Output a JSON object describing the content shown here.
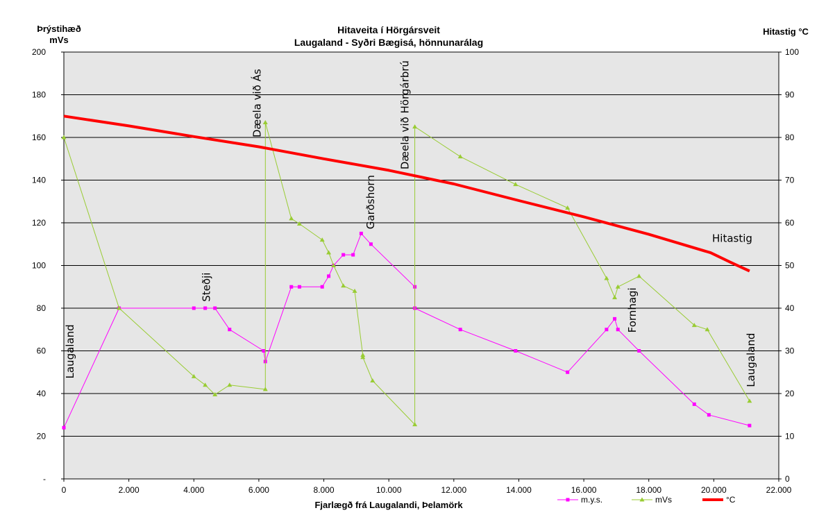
{
  "chart_data": {
    "type": "line",
    "title": "Hitaveita  í  Hörgársveit",
    "subtitle": "Laugaland - Syðri Bægisá, hönnunarálag",
    "xlabel": "Fjarlægð frá Laugalandi, Þelamörk",
    "ylabel_left_line1": "Þrýstihæð",
    "ylabel_left_line2": "mVs",
    "ylabel_right": "Hitastig °C",
    "xlim": [
      0,
      22000
    ],
    "ylim_left": [
      0,
      200
    ],
    "ylim_right": [
      0,
      100
    ],
    "x_ticks": [
      {
        "value": 0,
        "label": "0"
      },
      {
        "value": 2000,
        "label": "2.000"
      },
      {
        "value": 4000,
        "label": "4.000"
      },
      {
        "value": 6000,
        "label": "6.000"
      },
      {
        "value": 8000,
        "label": "8.000"
      },
      {
        "value": 10000,
        "label": "10.000"
      },
      {
        "value": 12000,
        "label": "12.000"
      },
      {
        "value": 14000,
        "label": "14.000"
      },
      {
        "value": 16000,
        "label": "16.000"
      },
      {
        "value": 18000,
        "label": "18.000"
      },
      {
        "value": 20000,
        "label": "20.000"
      },
      {
        "value": 22000,
        "label": "22.000"
      }
    ],
    "y_left_ticks": [
      {
        "value": 0,
        "label": "-"
      },
      {
        "value": 20,
        "label": "20"
      },
      {
        "value": 40,
        "label": "40"
      },
      {
        "value": 60,
        "label": "60"
      },
      {
        "value": 80,
        "label": "80"
      },
      {
        "value": 100,
        "label": "100"
      },
      {
        "value": 120,
        "label": "120"
      },
      {
        "value": 140,
        "label": "140"
      },
      {
        "value": 160,
        "label": "160"
      },
      {
        "value": 180,
        "label": "180"
      },
      {
        "value": 200,
        "label": "200"
      }
    ],
    "y_right_ticks": [
      {
        "value": 0,
        "label": "0"
      },
      {
        "value": 10,
        "label": "10"
      },
      {
        "value": 20,
        "label": "20"
      },
      {
        "value": 30,
        "label": "30"
      },
      {
        "value": 40,
        "label": "40"
      },
      {
        "value": 50,
        "label": "50"
      },
      {
        "value": 60,
        "label": "60"
      },
      {
        "value": 70,
        "label": "70"
      },
      {
        "value": 80,
        "label": "80"
      },
      {
        "value": 90,
        "label": "90"
      },
      {
        "value": 100,
        "label": "100"
      }
    ],
    "grid": true,
    "legend_position": "bottom-right",
    "series": [
      {
        "name": "m.y.s.",
        "axis": "left",
        "color": "#ff00ff",
        "marker": "square",
        "points": [
          [
            0,
            24
          ],
          [
            1700,
            80
          ],
          [
            4000,
            80
          ],
          [
            4350,
            80
          ],
          [
            4650,
            80
          ],
          [
            5100,
            70
          ],
          [
            6150,
            60
          ],
          [
            6200,
            55
          ],
          [
            7000,
            90
          ],
          [
            7250,
            90
          ],
          [
            7950,
            90
          ],
          [
            8150,
            95
          ],
          [
            8300,
            100
          ],
          [
            8600,
            105
          ],
          [
            8900,
            105
          ],
          [
            9150,
            115
          ],
          [
            9450,
            110
          ],
          [
            10800,
            90
          ],
          [
            10800,
            80
          ],
          [
            12200,
            70
          ],
          [
            13900,
            60
          ],
          [
            15500,
            50
          ],
          [
            16700,
            70
          ],
          [
            16950,
            75
          ],
          [
            17050,
            70
          ],
          [
            17700,
            60
          ],
          [
            19400,
            35
          ],
          [
            19850,
            30
          ],
          [
            21100,
            25
          ]
        ]
      },
      {
        "name": "mVs",
        "axis": "left",
        "color": "#99cc33",
        "marker": "triangle",
        "points": [
          [
            0,
            160
          ],
          [
            1700,
            80
          ],
          [
            4000,
            48
          ],
          [
            4350,
            44
          ],
          [
            4650,
            39.5
          ],
          [
            5100,
            44
          ],
          [
            6200,
            42
          ],
          [
            6200,
            167
          ],
          [
            7000,
            122
          ],
          [
            7250,
            119.5
          ],
          [
            7950,
            112
          ],
          [
            8150,
            106
          ],
          [
            8300,
            100
          ],
          [
            8600,
            90.5
          ],
          [
            8950,
            88
          ],
          [
            9200,
            58
          ],
          [
            9200,
            57
          ],
          [
            9500,
            46
          ],
          [
            10800,
            25.5
          ],
          [
            10800,
            165
          ],
          [
            12200,
            151
          ],
          [
            13900,
            138
          ],
          [
            15500,
            127
          ],
          [
            16700,
            94
          ],
          [
            16950,
            85
          ],
          [
            17050,
            90
          ],
          [
            17700,
            95
          ],
          [
            19400,
            72
          ],
          [
            19800,
            70
          ],
          [
            21100,
            36.5
          ]
        ]
      },
      {
        "name": "°C",
        "axis": "right",
        "color": "#ff0000",
        "marker": "none",
        "points": [
          [
            0,
            85
          ],
          [
            2000,
            82.7
          ],
          [
            4000,
            80.2
          ],
          [
            6000,
            77.8
          ],
          [
            8000,
            75.0
          ],
          [
            10000,
            72.3
          ],
          [
            12000,
            69.1
          ],
          [
            14000,
            65.2
          ],
          [
            16000,
            61.4
          ],
          [
            18000,
            57.3
          ],
          [
            19900,
            53.0
          ],
          [
            20500,
            50.8
          ],
          [
            21100,
            48.7
          ]
        ]
      }
    ],
    "annotations": [
      {
        "text": "Laugaland",
        "x": 300,
        "y": 47,
        "rotation": -90
      },
      {
        "text": "Steðji",
        "x": 4500,
        "y": 83,
        "rotation": -90
      },
      {
        "text": "Dæela við Ás",
        "x": 6050,
        "y": 160,
        "rotation": -90
      },
      {
        "text": "Garðshorn",
        "x": 9550,
        "y": 117,
        "rotation": -90
      },
      {
        "text": "Dæela við Hörgárbrú",
        "x": 10600,
        "y": 145,
        "rotation": -90
      },
      {
        "text": "Fornhagi",
        "x": 17600,
        "y": 68.5,
        "rotation": -90
      },
      {
        "text": "Laugaland",
        "x": 21250,
        "y": 43,
        "rotation": -90
      },
      {
        "text": "Hitastig",
        "x": 19950,
        "y": 111,
        "rotation": 0
      }
    ]
  }
}
